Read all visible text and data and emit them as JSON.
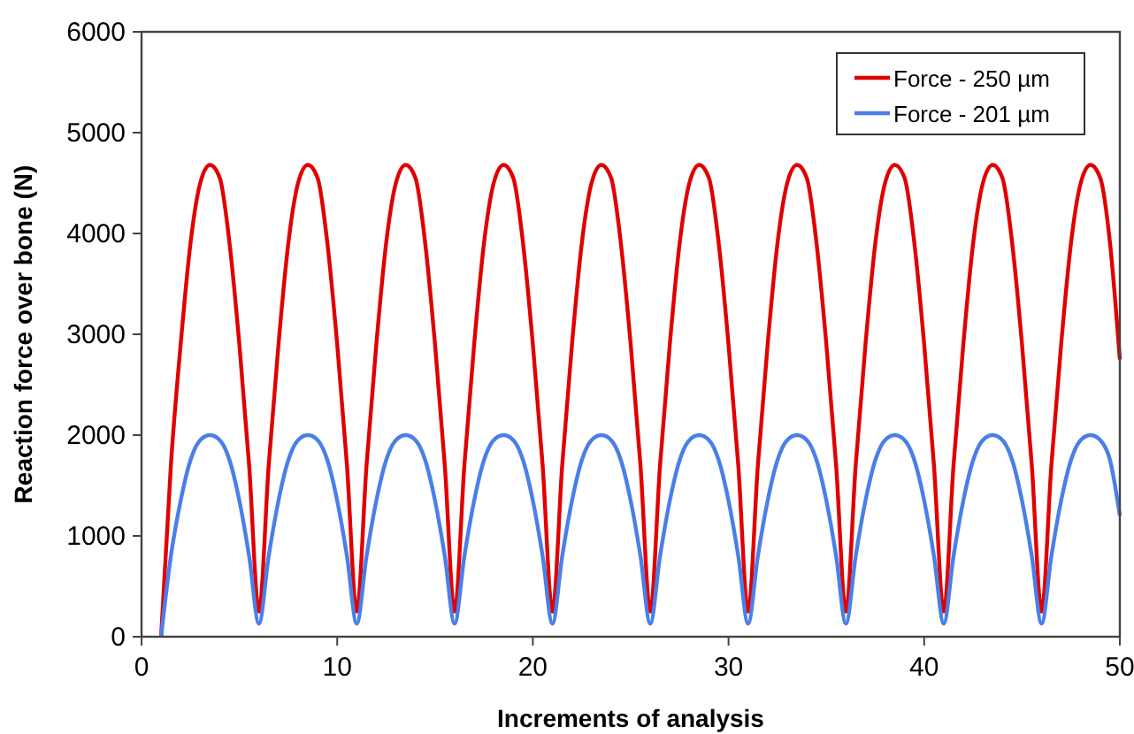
{
  "chart_data": {
    "type": "line",
    "xlabel": "Increments of analysis",
    "ylabel": "Reaction force over bone (N)",
    "x": [
      1,
      1.5,
      2,
      2.5,
      3,
      3.5,
      4,
      4.5,
      5,
      5.5,
      6,
      6.5,
      7,
      7.5,
      8,
      8.5,
      9,
      9.5,
      10,
      10.5,
      11,
      11.5,
      12,
      12.5,
      13,
      13.5,
      14,
      14.5,
      15,
      15.5,
      16,
      16.5,
      17,
      17.5,
      18,
      18.5,
      19,
      19.5,
      20,
      20.5,
      21,
      21.5,
      22,
      22.5,
      23,
      23.5,
      24,
      24.5,
      25,
      25.5,
      26,
      26.5,
      27,
      27.5,
      28,
      28.5,
      29,
      29.5,
      30,
      30.5,
      31,
      31.5,
      32,
      32.5,
      33,
      33.5,
      34,
      34.5,
      35,
      35.5,
      36,
      36.5,
      37,
      37.5,
      38,
      38.5,
      39,
      39.5,
      40,
      40.5,
      41,
      41.5,
      42,
      42.5,
      43,
      43.5,
      44,
      44.5,
      45,
      45.5,
      46,
      46.5,
      47,
      47.5,
      48,
      48.5,
      49,
      49.5,
      50
    ],
    "series": [
      {
        "name": "Force - 250 µm",
        "color": "#e00000",
        "values": [
          0,
          1700,
          2900,
          3900,
          4500,
          4680,
          4550,
          3900,
          2900,
          1700,
          250,
          1700,
          2900,
          3900,
          4500,
          4680,
          4550,
          3900,
          2900,
          1700,
          250,
          1700,
          2900,
          3900,
          4500,
          4680,
          4550,
          3900,
          2900,
          1700,
          250,
          1700,
          2900,
          3900,
          4500,
          4680,
          4550,
          3900,
          2900,
          1700,
          250,
          1700,
          2900,
          3900,
          4500,
          4680,
          4550,
          3900,
          2900,
          1700,
          250,
          1700,
          2900,
          3900,
          4500,
          4680,
          4550,
          3900,
          2900,
          1700,
          250,
          1700,
          2900,
          3900,
          4500,
          4680,
          4550,
          3900,
          2900,
          1700,
          250,
          1700,
          2900,
          3900,
          4500,
          4680,
          4550,
          3900,
          2900,
          1700,
          250,
          1700,
          2900,
          3900,
          4500,
          4680,
          4550,
          3900,
          2900,
          1700,
          250,
          1700,
          2900,
          3900,
          4500,
          4680,
          4550,
          3900,
          2750
        ]
      },
      {
        "name": "Force - 201 µm",
        "color": "#4a7fe8",
        "values": [
          0,
          800,
          1350,
          1750,
          1950,
          2000,
          1950,
          1750,
          1350,
          800,
          130,
          800,
          1350,
          1750,
          1950,
          2000,
          1950,
          1750,
          1350,
          800,
          130,
          800,
          1350,
          1750,
          1950,
          2000,
          1950,
          1750,
          1350,
          800,
          130,
          800,
          1350,
          1750,
          1950,
          2000,
          1950,
          1750,
          1350,
          800,
          130,
          800,
          1350,
          1750,
          1950,
          2000,
          1950,
          1750,
          1350,
          800,
          130,
          800,
          1350,
          1750,
          1950,
          2000,
          1950,
          1750,
          1350,
          800,
          130,
          800,
          1350,
          1750,
          1950,
          2000,
          1950,
          1750,
          1350,
          800,
          130,
          800,
          1350,
          1750,
          1950,
          2000,
          1950,
          1750,
          1350,
          800,
          130,
          800,
          1350,
          1750,
          1950,
          2000,
          1950,
          1750,
          1350,
          800,
          130,
          800,
          1350,
          1750,
          1950,
          2000,
          1950,
          1750,
          1200
        ]
      }
    ],
    "xlim": [
      0,
      50
    ],
    "xticks": [
      0,
      10,
      20,
      30,
      40,
      50
    ],
    "ylim": [
      0,
      6000
    ],
    "yticks": [
      0,
      1000,
      2000,
      3000,
      4000,
      5000,
      6000
    ],
    "grid": false,
    "legend": "top right",
    "marker": "none",
    "line_style": "solid"
  }
}
